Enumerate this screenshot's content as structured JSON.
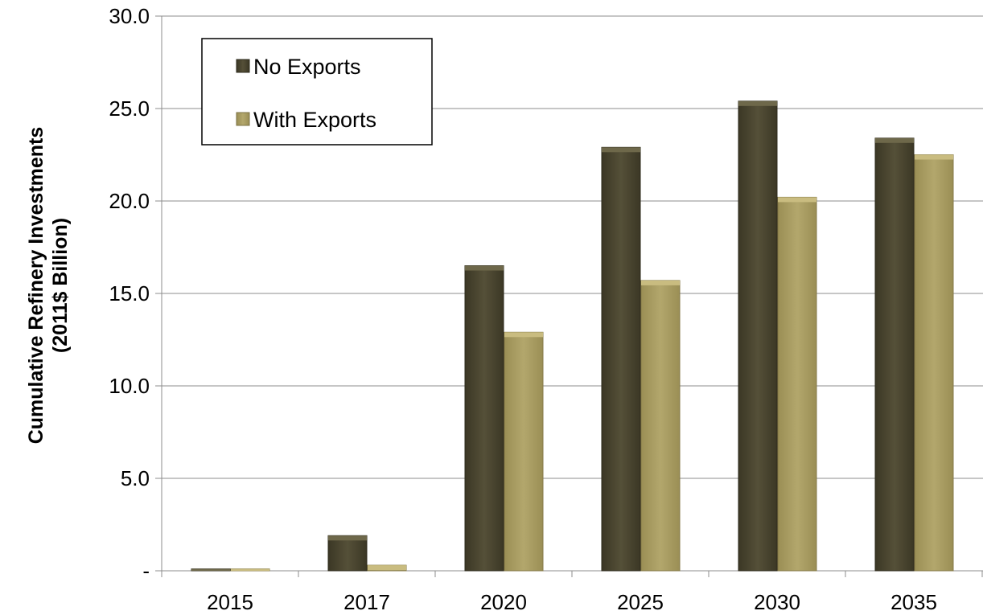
{
  "chart_data": {
    "type": "bar",
    "title": "",
    "xlabel": "",
    "ylabel_line1": "Cumulative Refinery Investments",
    "ylabel_line2": "(2011$ Billion)",
    "categories": [
      "2015",
      "2017",
      "2020",
      "2025",
      "2030",
      "2035"
    ],
    "series": [
      {
        "name": "No Exports",
        "values": [
          0.1,
          1.9,
          16.5,
          22.9,
          25.4,
          23.4
        ],
        "color": "#4f4a33",
        "top_color": "#6e684a"
      },
      {
        "name": "With Exports",
        "values": [
          0.1,
          0.3,
          12.9,
          15.7,
          20.2,
          22.5
        ],
        "color": "#a89c62",
        "top_color": "#c9bc80"
      }
    ],
    "ylim": [
      0,
      30
    ],
    "y_ticks": [
      0,
      5,
      10,
      15,
      20,
      25,
      30
    ],
    "y_tick_labels": [
      "-",
      "5.0",
      "10.0",
      "15.0",
      "20.0",
      "25.0",
      "30.0"
    ],
    "grid": true,
    "legend_position": "top-left"
  }
}
